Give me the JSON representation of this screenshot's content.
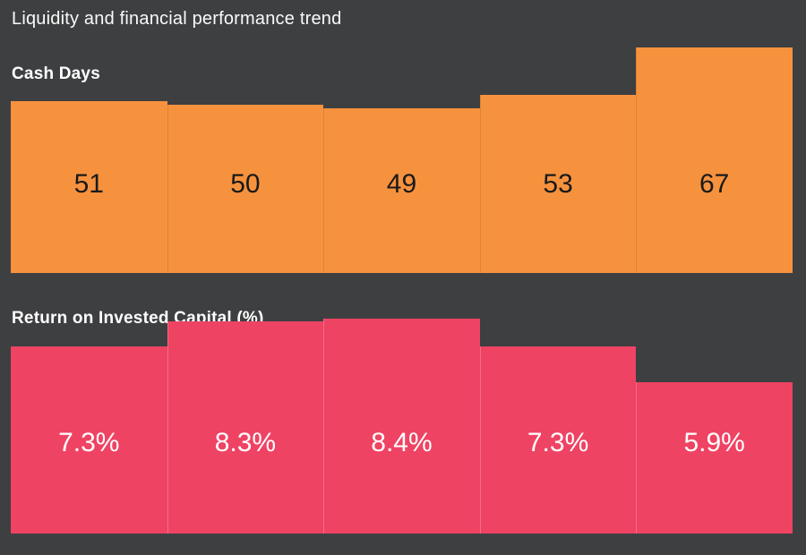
{
  "page": {
    "title": "Liquidity and financial performance trend"
  },
  "colors": {
    "background": "#3E3F41",
    "title_text": "#FAFAFA",
    "heading_text": "#FFFFFF",
    "cash_bar": "#F6923E",
    "cash_label": "#1A1A1A",
    "roic_bar": "#EF4364",
    "roic_label": "#FFFFFF"
  },
  "chart_data": [
    {
      "type": "bar",
      "title": "Cash Days",
      "values": [
        51,
        50,
        49,
        53,
        67
      ],
      "data_labels": [
        "51",
        "50",
        "49",
        "53",
        "67"
      ],
      "ylim": [
        0,
        67
      ],
      "xlabel": "",
      "ylabel": "",
      "grid": false,
      "legend": false,
      "bar_color": "#F6923E",
      "label_color": "#1A1A1A"
    },
    {
      "type": "bar",
      "title": "Return on Invested Capital (%)",
      "values": [
        7.3,
        8.3,
        8.4,
        7.3,
        5.9
      ],
      "data_labels": [
        "7.3%",
        "8.3%",
        "8.4%",
        "7.3%",
        "5.9%"
      ],
      "ylim": [
        0,
        8.4
      ],
      "xlabel": "",
      "ylabel": "",
      "grid": false,
      "legend": false,
      "bar_color": "#EF4364",
      "label_color": "#FFFFFF"
    }
  ]
}
